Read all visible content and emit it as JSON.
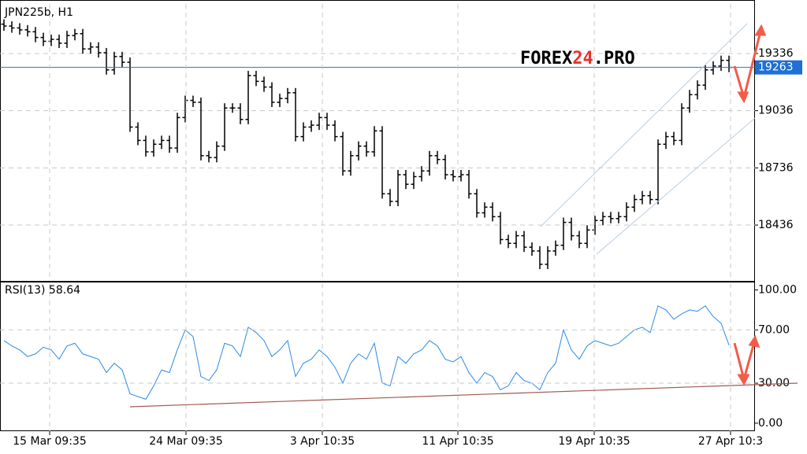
{
  "chart_data": [
    {
      "type": "ohlc",
      "title": "JPN225b, H1",
      "color": "#000000",
      "open": [
        19490,
        19480,
        19470,
        19460,
        19450,
        19420,
        19400,
        19410,
        19390,
        19430,
        19440,
        19360,
        19370,
        19340,
        19250,
        19320,
        19290,
        18950,
        18880,
        18820,
        18860,
        18880,
        18840,
        19000,
        19090,
        19080,
        18800,
        18790,
        18850,
        19050,
        19050,
        18990,
        19220,
        19190,
        19160,
        19080,
        19100,
        19130,
        18900,
        18950,
        18960,
        19000,
        18960,
        18900,
        18720,
        18800,
        18850,
        18820,
        18930,
        18600,
        18560,
        18700,
        18650,
        18690,
        18720,
        18800,
        18780,
        18700,
        18690,
        18700,
        18600,
        18500,
        18530,
        18480,
        18360,
        18340,
        18380,
        18320,
        18300,
        18230,
        18300,
        18330,
        18450,
        18380,
        18340,
        18410,
        18460,
        18480,
        18470,
        18480,
        18530,
        18570,
        18590,
        18570,
        18860,
        18900,
        18880,
        19050,
        19120,
        19170,
        19250,
        19270,
        19300
      ],
      "high": [
        19515,
        19505,
        19495,
        19485,
        19475,
        19445,
        19435,
        19435,
        19455,
        19465,
        19465,
        19395,
        19395,
        19365,
        19345,
        19345,
        19315,
        18975,
        18905,
        18885,
        18905,
        18905,
        19025,
        19115,
        19115,
        19105,
        18825,
        18875,
        19075,
        19075,
        19075,
        19245,
        19245,
        19215,
        19185,
        19125,
        19155,
        19155,
        18975,
        18985,
        19025,
        19025,
        18985,
        18925,
        18825,
        18875,
        18875,
        18955,
        18955,
        18625,
        18725,
        18725,
        18715,
        18745,
        18825,
        18825,
        18805,
        18725,
        18725,
        18725,
        18625,
        18555,
        18555,
        18505,
        18385,
        18405,
        18405,
        18345,
        18325,
        18325,
        18355,
        18475,
        18475,
        18405,
        18435,
        18485,
        18505,
        18505,
        18505,
        18555,
        18595,
        18615,
        18615,
        18885,
        18925,
        18925,
        19075,
        19145,
        19195,
        19275,
        19295,
        19325,
        19325
      ],
      "low": [
        19455,
        19445,
        19435,
        19425,
        19395,
        19375,
        19375,
        19365,
        19365,
        19405,
        19335,
        19335,
        19315,
        19225,
        19225,
        19265,
        18925,
        18855,
        18795,
        18795,
        18835,
        18815,
        18815,
        18975,
        19055,
        18775,
        18765,
        18765,
        18825,
        19025,
        18965,
        18965,
        19165,
        19135,
        19055,
        19055,
        19075,
        18875,
        18875,
        18925,
        18935,
        18935,
        18875,
        18695,
        18695,
        18775,
        18795,
        18795,
        18575,
        18535,
        18535,
        18625,
        18625,
        18665,
        18695,
        18755,
        18675,
        18665,
        18665,
        18575,
        18475,
        18475,
        18455,
        18335,
        18315,
        18315,
        18295,
        18275,
        18205,
        18205,
        18275,
        18305,
        18355,
        18315,
        18315,
        18385,
        18435,
        18445,
        18445,
        18455,
        18505,
        18545,
        18545,
        18545,
        18835,
        18855,
        18855,
        19025,
        19095,
        19145,
        19225,
        19245,
        19238
      ],
      "close": [
        19480,
        19470,
        19460,
        19450,
        19420,
        19400,
        19410,
        19390,
        19430,
        19440,
        19360,
        19370,
        19340,
        19250,
        19320,
        19290,
        18950,
        18880,
        18820,
        18860,
        18880,
        18840,
        19000,
        19090,
        19080,
        18800,
        18790,
        18850,
        19050,
        19050,
        18990,
        19220,
        19190,
        19160,
        19080,
        19100,
        19130,
        18900,
        18950,
        18960,
        19000,
        18960,
        18900,
        18720,
        18800,
        18850,
        18820,
        18930,
        18600,
        18560,
        18700,
        18650,
        18690,
        18720,
        18800,
        18780,
        18700,
        18690,
        18700,
        18600,
        18500,
        18530,
        18480,
        18360,
        18340,
        18380,
        18320,
        18300,
        18230,
        18300,
        18330,
        18450,
        18380,
        18340,
        18410,
        18460,
        18480,
        18470,
        18480,
        18530,
        18570,
        18590,
        18570,
        18860,
        18900,
        18880,
        19050,
        19120,
        19170,
        19250,
        19270,
        19300,
        19263
      ],
      "xlim": [
        -0.5,
        95.3
      ],
      "ylim": [
        18143,
        19596
      ],
      "yticks": [
        19336,
        19036,
        18736,
        18436
      ],
      "current_price": 19263,
      "current_price_color": "#1f6fd6",
      "grid": true,
      "brand": [
        "FOREX",
        "24",
        ".PRO"
      ]
    },
    {
      "type": "line",
      "title": "RSI(13) 58.64",
      "color": "#2b8ae6",
      "values": [
        62,
        58,
        55,
        50,
        52,
        57,
        55,
        48,
        58,
        60,
        52,
        50,
        48,
        38,
        45,
        40,
        22,
        20,
        18,
        28,
        40,
        38,
        55,
        70,
        65,
        35,
        32,
        40,
        60,
        58,
        50,
        72,
        68,
        62,
        50,
        55,
        62,
        35,
        45,
        48,
        55,
        50,
        42,
        30,
        45,
        52,
        48,
        60,
        30,
        28,
        50,
        45,
        52,
        55,
        62,
        58,
        48,
        46,
        50,
        38,
        30,
        38,
        35,
        25,
        28,
        38,
        32,
        30,
        25,
        38,
        45,
        70,
        55,
        48,
        58,
        62,
        60,
        58,
        60,
        65,
        70,
        72,
        68,
        88,
        85,
        78,
        82,
        85,
        84,
        88,
        80,
        75,
        58.64
      ],
      "xlim": [
        -0.5,
        95.3
      ],
      "ylim": [
        -6,
        105
      ],
      "yticks": [
        {
          "value": 100,
          "label": "100.00"
        },
        {
          "value": 70,
          "label": "70.00"
        },
        {
          "value": 30,
          "label": "30.00"
        },
        {
          "value": 0,
          "label": "0.00"
        }
      ],
      "grid_levels": [
        70,
        30
      ],
      "xticks": [
        {
          "value": 5.8,
          "label": "15 Mar 09:35"
        },
        {
          "value": 23.1,
          "label": "24 Mar 09:35"
        },
        {
          "value": 40.4,
          "label": "3 Apr 10:35"
        },
        {
          "value": 57.6,
          "label": "11 Apr 10:35"
        },
        {
          "value": 74.9,
          "label": "19 Apr 10:35"
        },
        {
          "value": 92.2,
          "label": "27 Apr 10:3"
        }
      ]
    }
  ]
}
